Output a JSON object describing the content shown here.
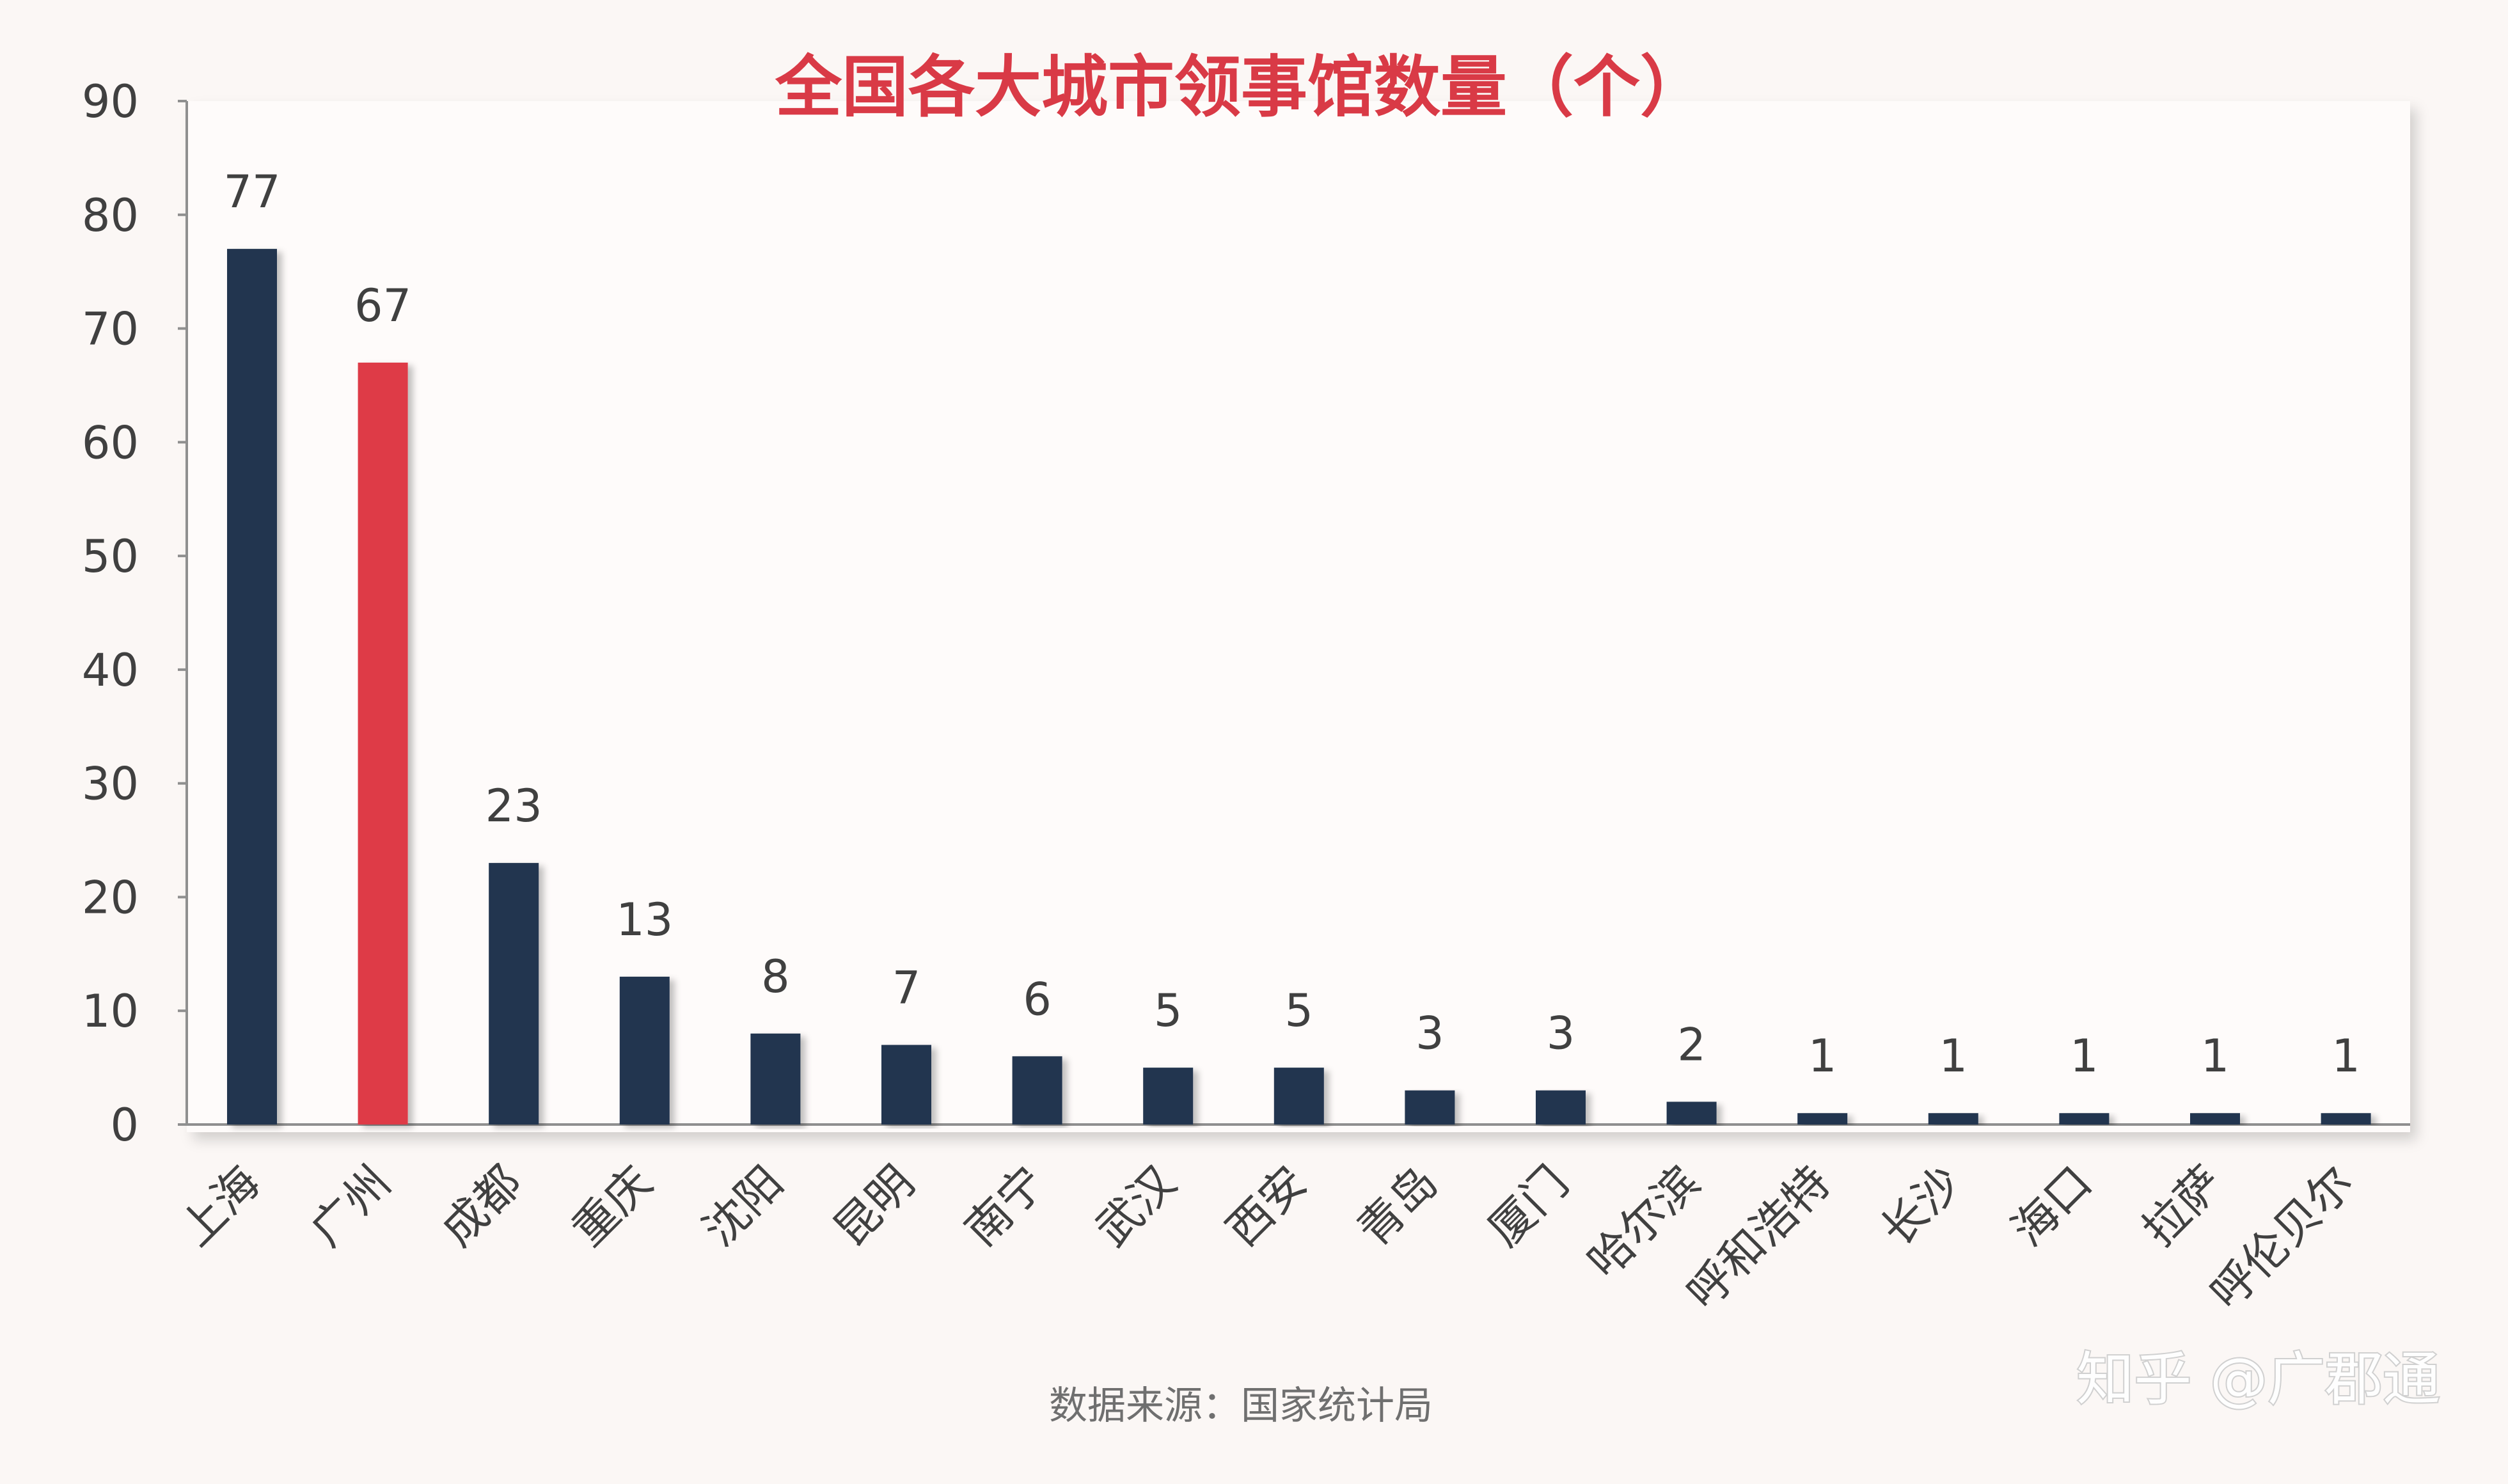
{
  "chart_data": {
    "type": "bar",
    "title": "全国各大城市领事馆数量（个）",
    "categories": [
      "上海",
      "广州",
      "成都",
      "重庆",
      "沈阳",
      "昆明",
      "南宁",
      "武汉",
      "西安",
      "青岛",
      "厦门",
      "哈尔滨",
      "呼和浩特",
      "长沙",
      "海口",
      "拉萨",
      "呼伦贝尔"
    ],
    "values": [
      77,
      67,
      23,
      13,
      8,
      7,
      6,
      5,
      5,
      3,
      3,
      2,
      1,
      1,
      1,
      1,
      1
    ],
    "highlight_index": 1,
    "ylim": [
      0,
      90
    ],
    "yticks": [
      0,
      10,
      20,
      30,
      40,
      50,
      60,
      70,
      80,
      90
    ],
    "grid": false,
    "xlabel": "",
    "ylabel": ""
  },
  "source_note": "数据来源：国家统计局",
  "watermark": "知乎 @广郡通",
  "colors": {
    "bar": "#22344f",
    "highlight": "#de3a46",
    "title": "#d93a46",
    "axis": "#8f8f8f",
    "text": "#404040",
    "plot_bg": "#fefbfa",
    "page_bg": "#fbf7f5"
  }
}
